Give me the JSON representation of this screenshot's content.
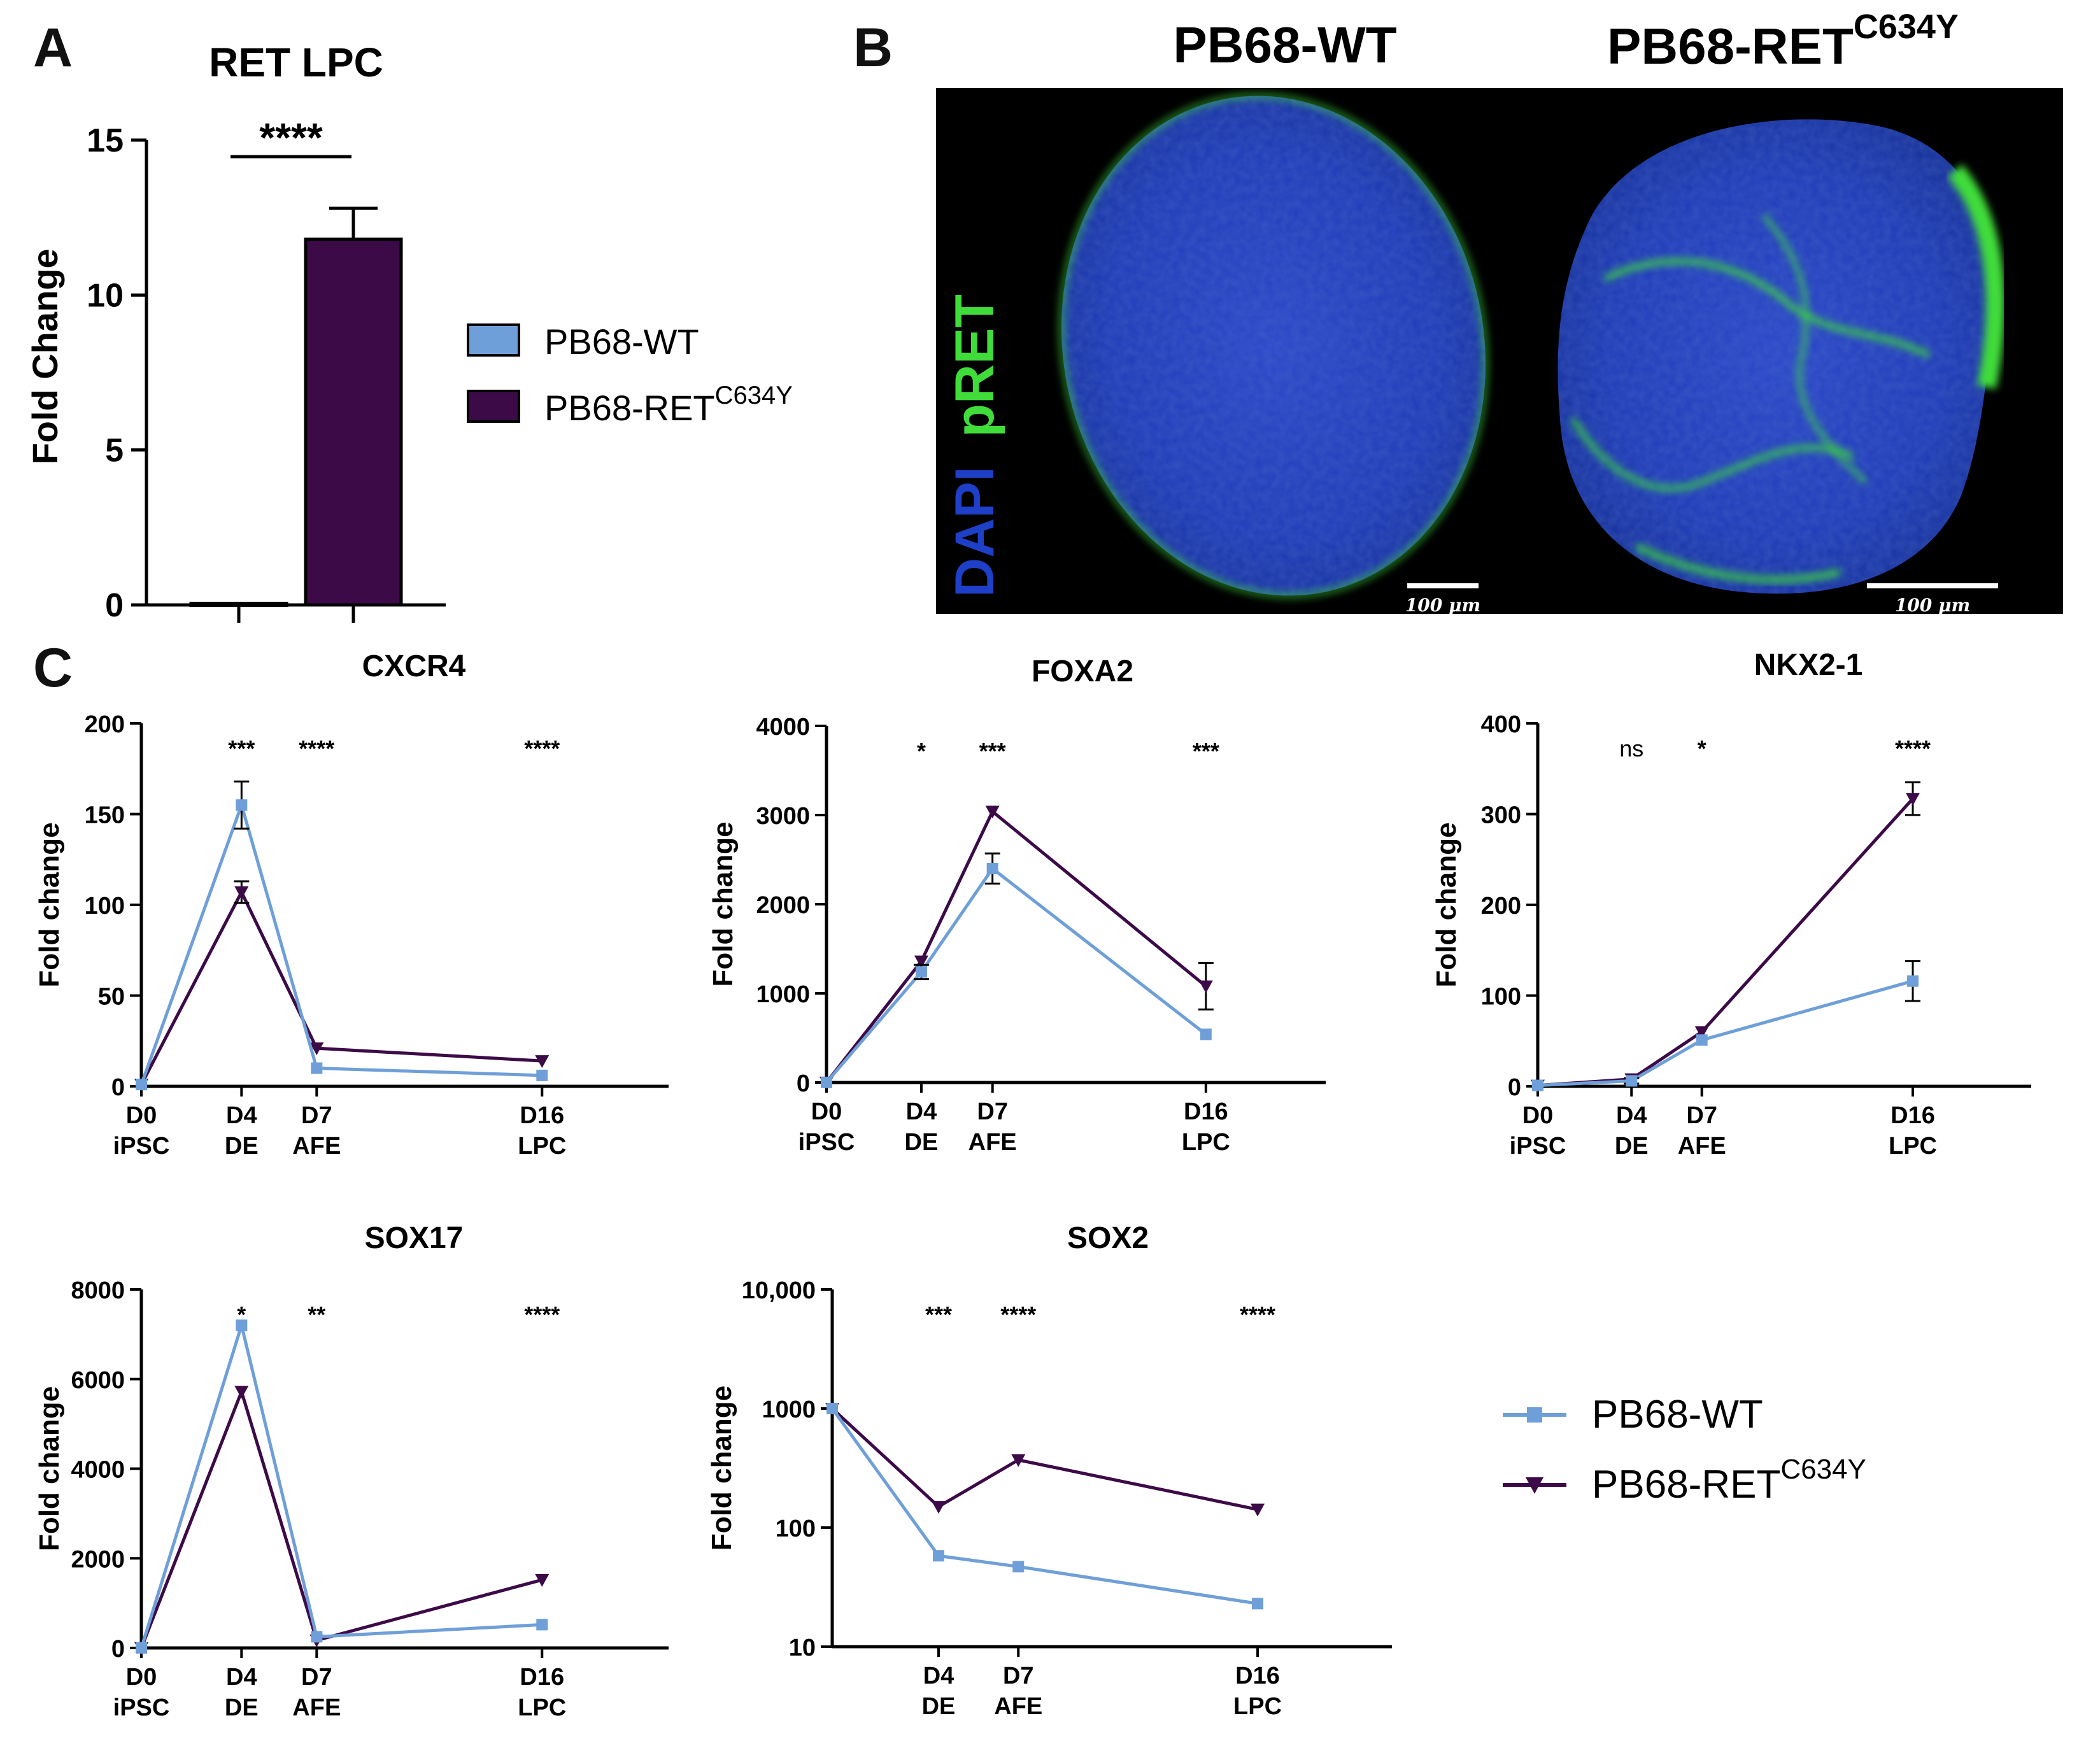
{
  "panels": {
    "a": "A",
    "b": "B",
    "c": "C"
  },
  "colors": {
    "wt": "#6f9fd8",
    "ret": "#3d0a48",
    "axis": "#000000",
    "micro_bg": "#000000",
    "dapi": "#1e3fc8",
    "pret": "#3fdc3a"
  },
  "bar_chart": {
    "title": "RET LPC",
    "ylabel": "Fold Change",
    "significance": "****",
    "legend": [
      {
        "label": "PB68-WT",
        "sup": ""
      },
      {
        "label": "PB68-RET",
        "sup": "C634Y"
      }
    ]
  },
  "micrograph": {
    "titles": [
      {
        "label": "PB68-WT",
        "sup": ""
      },
      {
        "label": "PB68-RET",
        "sup": "C634Y"
      }
    ],
    "stain_blue": "DAPI",
    "stain_green": "pRET",
    "scale_bars": [
      "100 μm",
      "100 μm"
    ]
  },
  "line_legend": [
    {
      "label": "PB68-WT",
      "sup": ""
    },
    {
      "label": "PB68-RET",
      "sup": "C634Y"
    }
  ],
  "chart_data": [
    {
      "id": "ret-lpc",
      "type": "bar",
      "title": "RET LPC",
      "xlabel": "",
      "ylabel": "Fold Change",
      "categories": [
        "PB68-WT",
        "PB68-RETC634Y"
      ],
      "values": [
        0.05,
        11.8
      ],
      "errors": [
        0.05,
        1.0
      ],
      "ylim": [
        0,
        15
      ],
      "yticks": [
        0,
        5,
        10,
        15
      ],
      "ytick_labels": [
        "0",
        "5",
        "10",
        "15"
      ],
      "significance": "****"
    },
    {
      "id": "cxcr4",
      "type": "line",
      "title": "CXCR4",
      "ylabel": "Fold change",
      "yscale": "linear",
      "ylim": [
        0,
        200
      ],
      "yticks": [
        0,
        50,
        100,
        150,
        200
      ],
      "ytick_labels": [
        "0",
        "50",
        "100",
        "150",
        "200"
      ],
      "x": [
        0,
        4,
        7,
        16
      ],
      "xlim": [
        0,
        20
      ],
      "x_labels": [
        [
          "D0",
          "iPSC"
        ],
        [
          "D4",
          "DE"
        ],
        [
          "D7",
          "AFE"
        ],
        [
          "D16",
          "LPC"
        ]
      ],
      "series": [
        {
          "name": "PB68-WT",
          "values": [
            1,
            155,
            10,
            6
          ],
          "errors": [
            0,
            13,
            0,
            0
          ]
        },
        {
          "name": "PB68-RETC634Y",
          "values": [
            1,
            107,
            21,
            14
          ],
          "errors": [
            0,
            6,
            0,
            0
          ]
        }
      ],
      "significance": [
        {
          "x": 4,
          "text": "***"
        },
        {
          "x": 7,
          "text": "****"
        },
        {
          "x": 16,
          "text": "****"
        }
      ]
    },
    {
      "id": "foxa2",
      "type": "line",
      "title": "FOXA2",
      "ylabel": "Fold change",
      "yscale": "linear",
      "ylim": [
        0,
        4000
      ],
      "yticks": [
        0,
        1000,
        2000,
        3000,
        4000
      ],
      "ytick_labels": [
        "0",
        "1000",
        "2000",
        "3000",
        "4000"
      ],
      "x": [
        0,
        4,
        7,
        16
      ],
      "xlim": [
        0,
        20
      ],
      "x_labels": [
        [
          "D0",
          "iPSC"
        ],
        [
          "D4",
          "DE"
        ],
        [
          "D7",
          "AFE"
        ],
        [
          "D16",
          "LPC"
        ]
      ],
      "series": [
        {
          "name": "PB68-WT",
          "values": [
            1,
            1240,
            2400,
            540
          ],
          "errors": [
            0,
            80,
            170,
            0
          ]
        },
        {
          "name": "PB68-RETC634Y",
          "values": [
            1,
            1360,
            3040,
            1080
          ],
          "errors": [
            0,
            0,
            0,
            260
          ]
        }
      ],
      "significance": [
        {
          "x": 4,
          "text": "*"
        },
        {
          "x": 7,
          "text": "***"
        },
        {
          "x": 16,
          "text": "***"
        }
      ]
    },
    {
      "id": "nkx2-1",
      "type": "line",
      "title": "NKX2-1",
      "ylabel": "Fold change",
      "yscale": "linear",
      "ylim": [
        0,
        400
      ],
      "yticks": [
        0,
        100,
        200,
        300,
        400
      ],
      "ytick_labels": [
        "0",
        "100",
        "200",
        "300",
        "400"
      ],
      "x": [
        0,
        4,
        7,
        16
      ],
      "xlim": [
        0,
        20
      ],
      "x_labels": [
        [
          "D0",
          "iPSC"
        ],
        [
          "D4",
          "DE"
        ],
        [
          "D7",
          "AFE"
        ],
        [
          "D16",
          "LPC"
        ]
      ],
      "series": [
        {
          "name": "PB68-WT",
          "values": [
            1,
            6,
            51,
            116
          ],
          "errors": [
            0,
            3,
            0,
            22
          ]
        },
        {
          "name": "PB68-RETC634Y",
          "values": [
            1,
            8,
            60,
            317
          ],
          "errors": [
            0,
            0,
            0,
            18
          ]
        }
      ],
      "significance": [
        {
          "x": 4,
          "text": "ns"
        },
        {
          "x": 7,
          "text": "*"
        },
        {
          "x": 16,
          "text": "****"
        }
      ]
    },
    {
      "id": "sox17",
      "type": "line",
      "title": "SOX17",
      "ylabel": "Fold change",
      "yscale": "linear",
      "ylim": [
        0,
        8000
      ],
      "yticks": [
        0,
        2000,
        4000,
        6000,
        8000
      ],
      "ytick_labels": [
        "0",
        "2000",
        "4000",
        "6000",
        "8000"
      ],
      "x": [
        0,
        4,
        7,
        16
      ],
      "xlim": [
        0,
        20
      ],
      "x_labels": [
        [
          "D0",
          "iPSC"
        ],
        [
          "D4",
          "DE"
        ],
        [
          "D7",
          "AFE"
        ],
        [
          "D16",
          "LPC"
        ]
      ],
      "series": [
        {
          "name": "PB68-WT",
          "values": [
            1,
            7200,
            250,
            520
          ],
          "errors": [
            0,
            0,
            0,
            0
          ]
        },
        {
          "name": "PB68-RETC634Y",
          "values": [
            1,
            5720,
            170,
            1520
          ],
          "errors": [
            0,
            0,
            0,
            0
          ]
        }
      ],
      "significance": [
        {
          "x": 4,
          "text": "*"
        },
        {
          "x": 7,
          "text": "**"
        },
        {
          "x": 16,
          "text": "****"
        }
      ]
    },
    {
      "id": "sox2",
      "type": "line",
      "title": "SOX2",
      "ylabel": "Fold change",
      "yscale": "log",
      "ylim": [
        10,
        10000
      ],
      "yticks": [
        10,
        100,
        1000,
        10000
      ],
      "ytick_labels": [
        "10",
        "100",
        "1000",
        "10,000"
      ],
      "x": [
        0,
        4,
        7,
        16
      ],
      "xlim": [
        0,
        20
      ],
      "x_labels": [
        [],
        [
          "D4",
          "DE"
        ],
        [
          "D7",
          "AFE"
        ],
        [
          "D16",
          "LPC"
        ]
      ],
      "series": [
        {
          "name": "PB68-WT",
          "values": [
            1000,
            58,
            47,
            23
          ],
          "errors": [
            0,
            0,
            0,
            0
          ]
        },
        {
          "name": "PB68-RETC634Y",
          "values": [
            1000,
            150,
            370,
            142
          ],
          "errors": [
            0,
            0,
            0,
            0
          ]
        }
      ],
      "significance": [
        {
          "x": 4,
          "text": "***"
        },
        {
          "x": 7,
          "text": "****"
        },
        {
          "x": 16,
          "text": "****"
        }
      ]
    }
  ]
}
